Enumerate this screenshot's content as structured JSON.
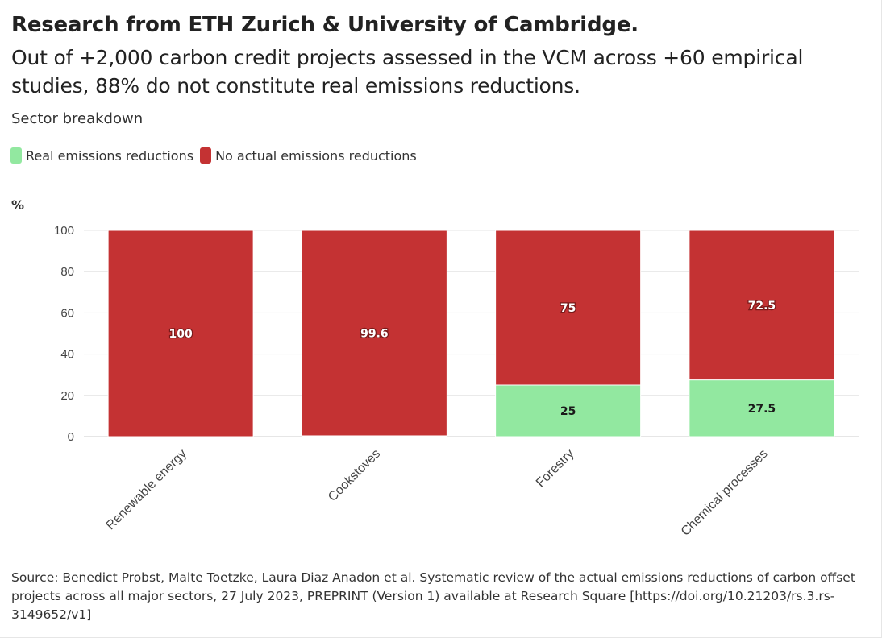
{
  "header": {
    "title": "Research from ETH Zurich & University of Cambridge.",
    "subtitle": "Out of +2,000 carbon credit projects assessed in the VCM across +60 empirical studies, 88% do not constitute real emissions reductions.",
    "description": "Sector breakdown"
  },
  "legend": {
    "items": [
      {
        "label": "Real emissions reductions",
        "color": "#92e8a0"
      },
      {
        "label": "No actual emissions reductions",
        "color": "#c43233"
      }
    ]
  },
  "axis": {
    "unit_label": "%"
  },
  "chart_data": {
    "type": "bar",
    "stacked": true,
    "categories": [
      "Renewable energy",
      "Cookstoves",
      "Forestry",
      "Chemical processes"
    ],
    "series": [
      {
        "name": "Real emissions reductions",
        "values": [
          0,
          0.4,
          25,
          27.5
        ],
        "color": "#92e8a0",
        "labels": [
          "",
          "",
          "25",
          "27.5"
        ]
      },
      {
        "name": "No actual emissions reductions",
        "values": [
          100,
          99.6,
          75,
          72.5
        ],
        "color": "#c43233",
        "labels": [
          "100",
          "99.6",
          "75",
          "72.5"
        ]
      }
    ],
    "ylabel": "%",
    "ylim": [
      0,
      100
    ],
    "yticks": [
      0,
      20,
      40,
      60,
      80,
      100
    ],
    "grid": true,
    "legend_position": "top-left"
  },
  "footer": {
    "source": "Source: Benedict Probst, Malte Toetzke, Laura Diaz Anadon et al. Systematic review of the actual emissions reductions of carbon offset projects across all major sectors, 27 July 2023, PREPRINT (Version 1) available at Research Square [https://doi.org/10.21203/rs.3.rs-3149652/v1]"
  }
}
